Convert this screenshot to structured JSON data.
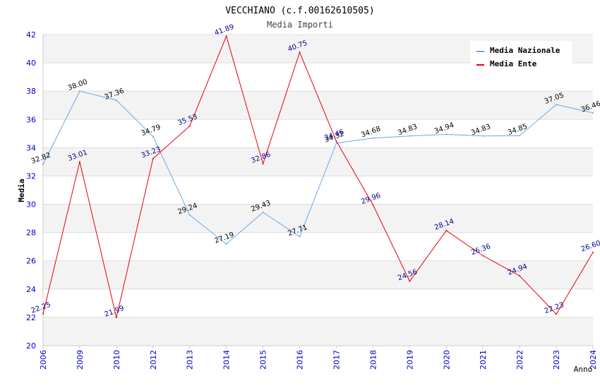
{
  "chart_data": {
    "type": "line",
    "title": "VECCHIANO (c.f.00162610505)",
    "subtitle": "Media Importi",
    "xlabel": "Anno",
    "ylabel": "Media",
    "ylim": [
      20,
      42
    ],
    "yticks": [
      20,
      22,
      24,
      26,
      28,
      30,
      32,
      34,
      36,
      38,
      40,
      42
    ],
    "categories": [
      "2006",
      "2009",
      "2010",
      "2012",
      "2013",
      "2014",
      "2015",
      "2016",
      "2017",
      "2018",
      "2019",
      "2020",
      "2021",
      "2022",
      "2023",
      "2024"
    ],
    "series": [
      {
        "name": "Media Nazionale",
        "color": "#6aa9e3",
        "label_color": "#000000",
        "values": [
          32.82,
          38.0,
          37.36,
          34.79,
          29.24,
          27.19,
          29.43,
          27.71,
          34.32,
          34.68,
          34.83,
          34.94,
          34.83,
          34.85,
          37.05,
          36.46
        ],
        "labels": [
          "32.82",
          "38.00",
          "37.36",
          "34.79",
          "29.24",
          "27.19",
          "29.43",
          "27.71",
          "34.32",
          "34.68",
          "34.83",
          "34.94",
          "34.83",
          "34.85",
          "37.05",
          "36.46"
        ]
      },
      {
        "name": "Media Ente",
        "color": "#e8000b",
        "label_color": "#00008b",
        "values": [
          22.25,
          33.01,
          21.99,
          33.23,
          35.53,
          41.89,
          32.86,
          40.75,
          34.46,
          29.96,
          24.56,
          28.14,
          26.36,
          24.94,
          22.23,
          26.6
        ],
        "labels": [
          "22.25",
          "33.01",
          "21.99",
          "33.23",
          "35.53",
          "41.89",
          "32.86",
          "40.75",
          "34.46",
          "29.96",
          "24.56",
          "28.14",
          "26.36",
          "24.94",
          "22.23",
          "26.60"
        ]
      }
    ],
    "legend_position": "top-right",
    "grid": true
  },
  "colors": {
    "tick_label": "#0000cc",
    "band": "#f3f3f3",
    "grid": "#dddddd",
    "axis": "#cccccc"
  }
}
